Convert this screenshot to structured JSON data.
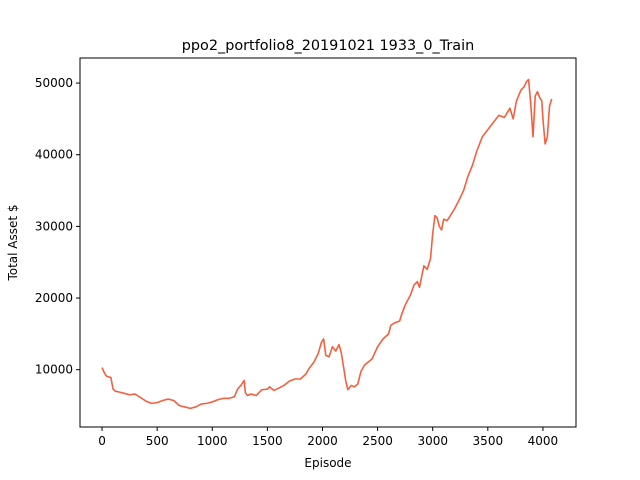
{
  "chart_data": {
    "type": "line",
    "title": "ppo2_portfolio8_20191021 1933_0_Train",
    "xlabel": "Episode",
    "ylabel": "Total Asset $",
    "xlim": [
      -200,
      4300
    ],
    "ylim": [
      2000,
      53500
    ],
    "xticks": [
      0,
      500,
      1000,
      1500,
      2000,
      2500,
      3000,
      3500,
      4000
    ],
    "yticks": [
      10000,
      20000,
      30000,
      40000,
      50000
    ],
    "grid": false,
    "line_color": "#f4603f",
    "series": [
      {
        "x": [
          0,
          20,
          40,
          60,
          80,
          100,
          120,
          150,
          200,
          250,
          300,
          350,
          400,
          450,
          500,
          550,
          600,
          650,
          700,
          750,
          800,
          850,
          900,
          950,
          1000,
          1050,
          1100,
          1150,
          1200,
          1230,
          1260,
          1290,
          1300,
          1320,
          1350,
          1400,
          1450,
          1500,
          1520,
          1560,
          1600,
          1650,
          1700,
          1750,
          1800,
          1850,
          1880,
          1920,
          1960,
          1990,
          2010,
          2030,
          2060,
          2090,
          2120,
          2150,
          2170,
          2190,
          2210,
          2230,
          2260,
          2290,
          2320,
          2350,
          2380,
          2410,
          2450,
          2500,
          2550,
          2600,
          2620,
          2650,
          2700,
          2720,
          2750,
          2800,
          2830,
          2860,
          2880,
          2900,
          2920,
          2950,
          2980,
          3000,
          3020,
          3040,
          3060,
          3080,
          3100,
          3130,
          3160,
          3200,
          3240,
          3280,
          3320,
          3360,
          3400,
          3450,
          3500,
          3550,
          3600,
          3650,
          3700,
          3730,
          3760,
          3800,
          3830,
          3850,
          3870,
          3890,
          3910,
          3930,
          3950,
          3970,
          3990,
          4000,
          4020,
          4040,
          4060,
          4080
        ],
        "values": [
          10300,
          9600,
          9100,
          9000,
          8900,
          7300,
          7000,
          6900,
          6700,
          6500,
          6600,
          6100,
          5600,
          5300,
          5400,
          5700,
          5900,
          5700,
          5000,
          4800,
          4600,
          4800,
          5200,
          5300,
          5500,
          5800,
          6000,
          6000,
          6200,
          7300,
          7800,
          8500,
          6800,
          6400,
          6600,
          6400,
          7200,
          7300,
          7600,
          7100,
          7400,
          7800,
          8400,
          8700,
          8700,
          9400,
          10200,
          11000,
          12200,
          13800,
          14300,
          12000,
          11800,
          13200,
          12600,
          13500,
          12400,
          10500,
          8500,
          7200,
          7800,
          7600,
          8000,
          9800,
          10600,
          11000,
          11500,
          13200,
          14300,
          15000,
          16200,
          16500,
          16800,
          17800,
          19000,
          20500,
          21800,
          22300,
          21500,
          23000,
          24500,
          24000,
          25500,
          29000,
          31500,
          31200,
          30000,
          29500,
          31000,
          30800,
          31500,
          32500,
          33700,
          35000,
          37000,
          38500,
          40500,
          42500,
          43500,
          44500,
          45500,
          45200,
          46500,
          45000,
          47500,
          49000,
          49500,
          50200,
          50500,
          47000,
          42500,
          48200,
          48800,
          48000,
          47500,
          45000,
          41500,
          42500,
          46800,
          47800
        ]
      }
    ]
  }
}
